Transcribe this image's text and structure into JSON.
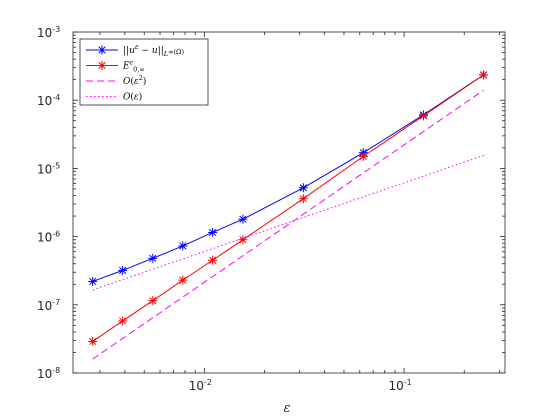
{
  "chart_data": {
    "type": "line",
    "xlabel": "ε",
    "ylabel": "",
    "title": "",
    "xscale": "log",
    "yscale": "log",
    "xlim": [
      0.0022,
      0.32
    ],
    "ylim": [
      1e-08,
      0.001
    ],
    "grid": false,
    "legend_position": "top-left",
    "x_tick_labels": [
      {
        "value": 0.01,
        "base": "10",
        "exp": "-2"
      },
      {
        "value": 0.1,
        "base": "10",
        "exp": "-1"
      }
    ],
    "y_tick_labels": [
      {
        "value": 1e-08,
        "base": "10",
        "exp": "-8"
      },
      {
        "value": 1e-07,
        "base": "10",
        "exp": "-7"
      },
      {
        "value": 1e-06,
        "base": "10",
        "exp": "-6"
      },
      {
        "value": 1e-05,
        "base": "10",
        "exp": "-5"
      },
      {
        "value": 0.0001,
        "base": "10",
        "exp": "-4"
      },
      {
        "value": 0.001,
        "base": "10",
        "exp": "-3"
      }
    ],
    "series": [
      {
        "name": "||u^ε − u||_{L^∞(Ω)}",
        "color": "#0000ff",
        "style": "solid",
        "marker": "asterisk",
        "x": [
          0.00276,
          0.0039,
          0.00552,
          0.0078,
          0.011,
          0.0156,
          0.0313,
          0.0625,
          0.125,
          0.25
        ],
        "y": [
          2.2e-07,
          3.2e-07,
          4.8e-07,
          7.3e-07,
          1.15e-06,
          1.8e-06,
          5.2e-06,
          1.7e-05,
          6.1e-05,
          0.000235
        ]
      },
      {
        "name": "E^ε_{0,∞}",
        "color": "#ff0000",
        "style": "solid",
        "marker": "asterisk",
        "x": [
          0.00276,
          0.0039,
          0.00552,
          0.0078,
          0.011,
          0.0156,
          0.0313,
          0.0625,
          0.125,
          0.25
        ],
        "y": [
          2.9e-08,
          5.8e-08,
          1.15e-07,
          2.3e-07,
          4.5e-07,
          9e-07,
          3.6e-06,
          1.5e-05,
          5.9e-05,
          0.000235
        ]
      },
      {
        "name": "O(ε²)",
        "color": "#ff00ff",
        "style": "dashed",
        "marker": "none",
        "x": [
          0.00276,
          0.25
        ],
        "y": [
          1.6e-08,
          0.00014
        ]
      },
      {
        "name": "O(ε)",
        "color": "#ff00ff",
        "style": "dotted",
        "marker": "none",
        "x": [
          0.00276,
          0.25
        ],
        "y": [
          1.65e-07,
          1.55e-05
        ]
      }
    ]
  }
}
